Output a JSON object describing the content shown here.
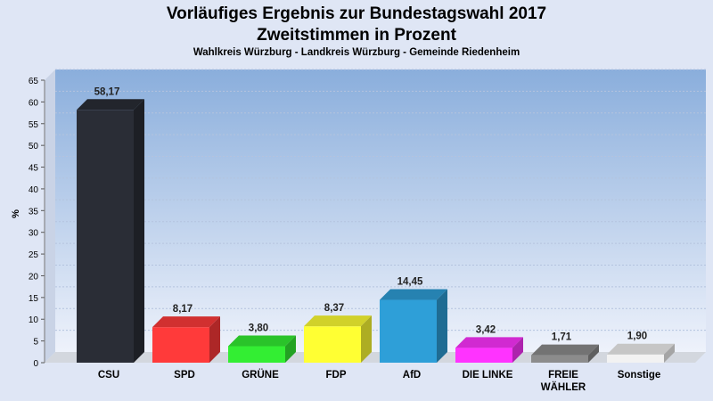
{
  "chart_data": {
    "type": "bar",
    "title_line1": "Vorläufiges Ergebnis zur Bundestagswahl 2017",
    "title_line2": "Zweitstimmen in Prozent",
    "subtitle": "Wahlkreis Würzburg - Landkreis Würzburg - Gemeinde Riedenheim",
    "ylabel": "%",
    "xlabel": "",
    "ylim": [
      0,
      65
    ],
    "yticks": [
      0,
      5,
      10,
      15,
      20,
      25,
      30,
      35,
      40,
      45,
      50,
      55,
      60,
      65
    ],
    "grid": true,
    "categories": [
      "CSU",
      "SPD",
      "GRÜNE",
      "FDP",
      "AfD",
      "DIE LINKE",
      "FREIE WÄHLER",
      "Sonstige"
    ],
    "category_lines": [
      [
        "CSU"
      ],
      [
        "SPD"
      ],
      [
        "GRÜNE"
      ],
      [
        "FDP"
      ],
      [
        "AfD"
      ],
      [
        "DIE LINKE"
      ],
      [
        "FREIE",
        "WÄHLER"
      ],
      [
        "Sonstige"
      ]
    ],
    "values": [
      58.17,
      8.17,
      3.8,
      8.37,
      14.45,
      3.42,
      1.71,
      1.9
    ],
    "value_labels": [
      "58,17",
      "8,17",
      "3,80",
      "8,37",
      "14,45",
      "3,42",
      "1,71",
      "1,90"
    ],
    "colors": [
      "#2a2d36",
      "#ff3a3a",
      "#33ee33",
      "#ffff33",
      "#2e9fd8",
      "#ff33ff",
      "#8c8c8c",
      "#f2f2f2"
    ]
  }
}
